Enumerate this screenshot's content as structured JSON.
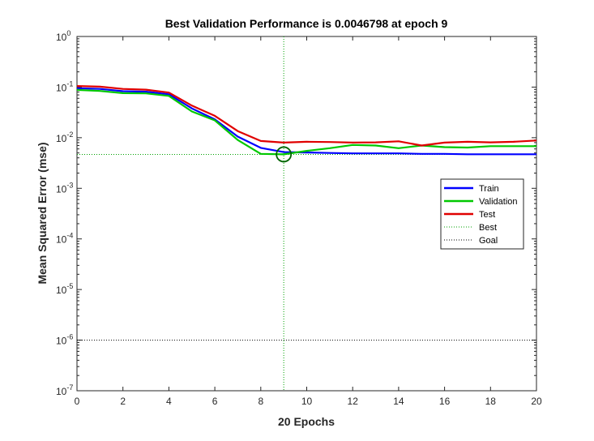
{
  "chart_data": {
    "type": "line",
    "title": "Best Validation Performance is 0.0046798 at epoch 9",
    "xlabel": "20 Epochs",
    "ylabel": "Mean Squared Error  (mse)",
    "xlim": [
      0,
      20
    ],
    "ylim": [
      1e-07,
      1
    ],
    "y_scale": "log",
    "x_ticks": [
      0,
      2,
      4,
      6,
      8,
      10,
      12,
      14,
      16,
      18,
      20
    ],
    "y_ticks": [
      {
        "base": "10",
        "exp": "-7",
        "value": 1e-07
      },
      {
        "base": "10",
        "exp": "-6",
        "value": 1e-06
      },
      {
        "base": "10",
        "exp": "-5",
        "value": 1e-05
      },
      {
        "base": "10",
        "exp": "-4",
        "value": 0.0001
      },
      {
        "base": "10",
        "exp": "-3",
        "value": 0.001
      },
      {
        "base": "10",
        "exp": "-2",
        "value": 0.01
      },
      {
        "base": "10",
        "exp": "-1",
        "value": 0.1
      },
      {
        "base": "10",
        "exp": "0",
        "value": 1
      }
    ],
    "grid": false,
    "legend_position": "right",
    "x": [
      0,
      1,
      2,
      3,
      4,
      5,
      6,
      7,
      8,
      9,
      10,
      11,
      12,
      13,
      14,
      15,
      16,
      17,
      18,
      19,
      20
    ],
    "series": [
      {
        "name": "Train",
        "color": "#0000ff",
        "values": [
          0.095,
          0.092,
          0.083,
          0.081,
          0.072,
          0.038,
          0.023,
          0.0105,
          0.0063,
          0.0052,
          0.0051,
          0.005,
          0.0049,
          0.0049,
          0.0049,
          0.0048,
          0.0048,
          0.0047,
          0.0047,
          0.0047,
          0.0047
        ]
      },
      {
        "name": "Validation",
        "color": "#00c800",
        "values": [
          0.088,
          0.084,
          0.076,
          0.075,
          0.067,
          0.033,
          0.022,
          0.009,
          0.0048,
          0.0046798,
          0.0055,
          0.0062,
          0.0072,
          0.007,
          0.0062,
          0.007,
          0.0065,
          0.0064,
          0.0068,
          0.0068,
          0.0068
        ]
      },
      {
        "name": "Test",
        "color": "#e00000",
        "values": [
          0.105,
          0.102,
          0.092,
          0.089,
          0.078,
          0.043,
          0.027,
          0.0135,
          0.0086,
          0.008,
          0.0083,
          0.0082,
          0.008,
          0.0081,
          0.0085,
          0.007,
          0.008,
          0.0083,
          0.0081,
          0.0083,
          0.0088
        ]
      }
    ],
    "best": {
      "label": "Best",
      "epoch": 9,
      "value": 0.0046798
    },
    "goal": {
      "label": "Goal",
      "value": 1e-06
    }
  }
}
